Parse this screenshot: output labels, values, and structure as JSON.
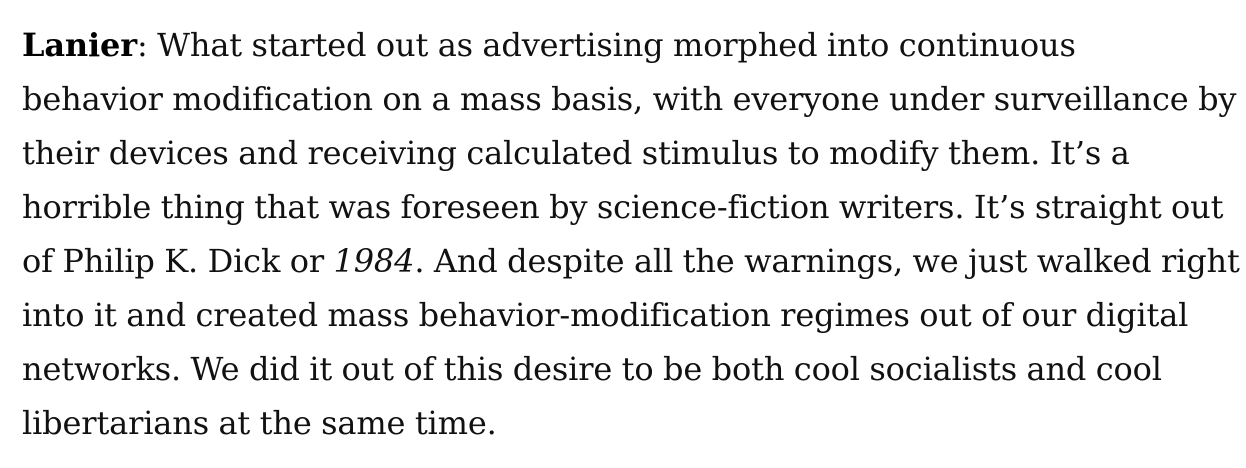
{
  "article": {
    "speaker": "Lanier",
    "lines": [
      {
        "text": ": What started out as advertising morphed into continuous"
      },
      {
        "text": "behavior modification on a mass basis, with everyone under surveillance by"
      },
      {
        "text": "their devices and receiving calculated stimulus to modify them. It’s a"
      },
      {
        "text": "horrible thing that was foreseen by science-fiction writers. It’s straight out"
      },
      {
        "before": "of Philip K. Dick or ",
        "italic": "1984",
        "after": ". And despite all the warnings, we just walked right"
      },
      {
        "text": "into it and created mass behavior-modification regimes out of our digital"
      },
      {
        "text": "networks. We did it out of this desire to be both cool socialists and cool"
      },
      {
        "text": "libertarians at the same time."
      }
    ]
  }
}
